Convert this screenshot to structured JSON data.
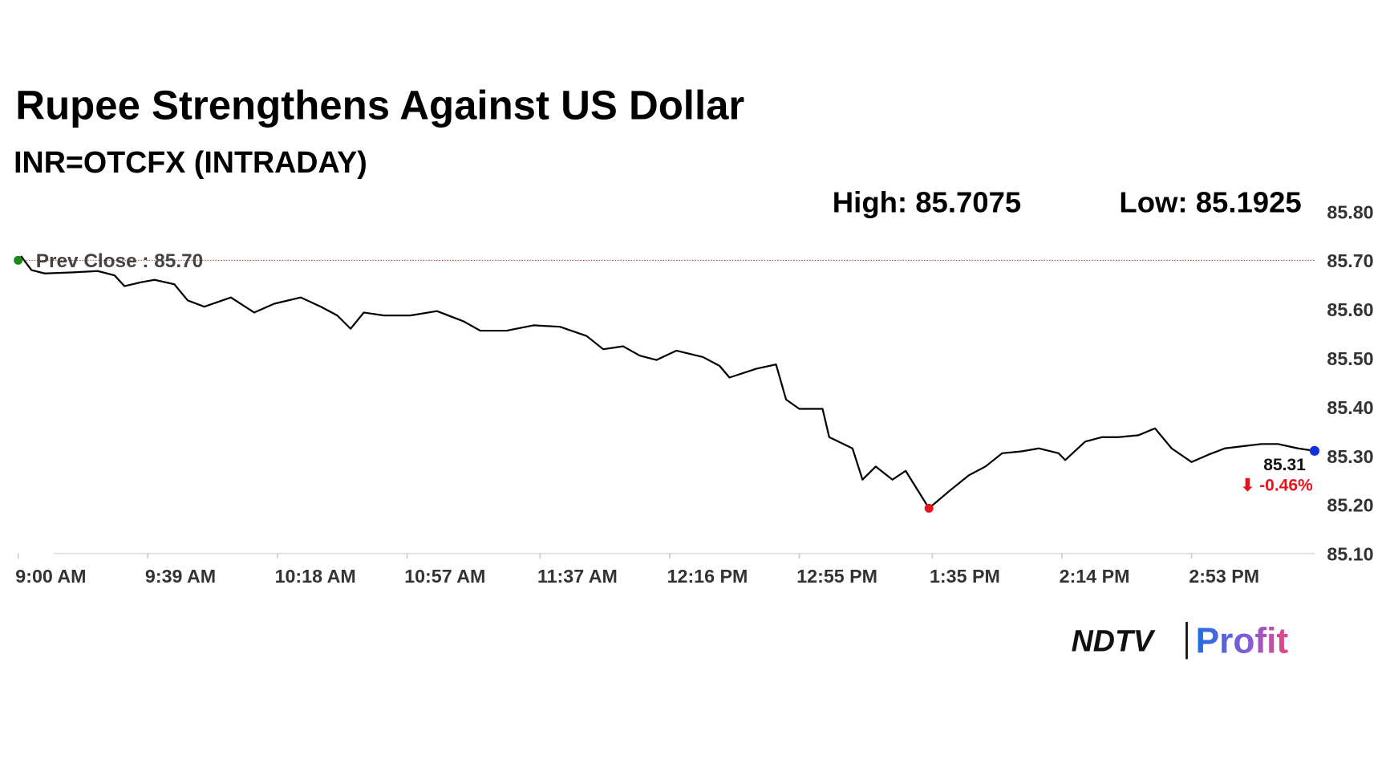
{
  "chart_data": {
    "type": "line",
    "title": "Rupee Strengthens Against US Dollar",
    "subtitle": "INR=OTCFX (INTRADAY)",
    "high_label": "High: 85.7075",
    "low_label": "Low: 85.1925",
    "prev_close": {
      "value": 85.7,
      "label": "Prev Close : 85.70"
    },
    "last_label": "85.31",
    "change_label": "⬇ -0.46%",
    "x": [
      "9:00 AM",
      "9:01 AM",
      "9:04 AM",
      "9:08 AM",
      "9:16 AM",
      "9:24 AM",
      "9:29 AM",
      "9:32 AM",
      "9:37 AM",
      "9:41 AM",
      "9:47 AM",
      "9:51 AM",
      "9:56 AM",
      "10:04 AM",
      "10:11 AM",
      "10:17 AM",
      "10:25 AM",
      "10:31 AM",
      "10:36 AM",
      "10:40 AM",
      "10:44 AM",
      "10:50 AM",
      "10:58 AM",
      "11:06 AM",
      "11:14 AM",
      "11:19 AM",
      "11:27 AM",
      "11:35 AM",
      "11:43 AM",
      "11:51 AM",
      "11:56 AM",
      "12:02 PM",
      "12:07 PM",
      "12:12 PM",
      "12:18 PM",
      "12:26 PM",
      "12:31 PM",
      "12:34 PM",
      "12:42 PM",
      "12:48 PM",
      "12:51 PM",
      "12:55 PM",
      "1:02 PM",
      "1:04 PM",
      "1:11 PM",
      "1:14 PM",
      "1:18 PM",
      "1:23 PM",
      "1:27 PM",
      "1:34 PM",
      "1:40 PM",
      "1:46 PM",
      "1:51 PM",
      "1:56 PM",
      "2:02 PM",
      "2:07 PM",
      "2:13 PM",
      "2:15 PM",
      "2:21 PM",
      "2:26 PM",
      "2:31 PM",
      "2:37 PM",
      "2:42 PM",
      "2:47 PM",
      "2:53 PM",
      "2:58 PM",
      "3:03 PM",
      "3:09 PM",
      "3:14 PM",
      "3:19 PM",
      "3:25 PM",
      "3:30 PM"
    ],
    "series": [
      {
        "name": "INR=OTCFX",
        "color": "#000000",
        "values": [
          85.7,
          85.7075,
          85.68,
          85.673,
          85.675,
          85.678,
          85.669,
          85.647,
          85.655,
          85.66,
          85.651,
          85.618,
          85.605,
          85.624,
          85.593,
          85.611,
          85.624,
          85.605,
          85.587,
          85.56,
          85.593,
          85.587,
          85.587,
          85.596,
          85.575,
          85.556,
          85.556,
          85.567,
          85.564,
          85.545,
          85.518,
          85.524,
          85.505,
          85.496,
          85.515,
          85.502,
          85.484,
          85.46,
          85.478,
          85.487,
          85.415,
          85.396,
          85.396,
          85.338,
          85.315,
          85.251,
          85.278,
          85.251,
          85.269,
          85.1925,
          85.227,
          85.26,
          85.278,
          85.305,
          85.309,
          85.315,
          85.305,
          85.291,
          85.329,
          85.338,
          85.338,
          85.342,
          85.356,
          85.315,
          85.287,
          85.302,
          85.315,
          85.32,
          85.324,
          85.324,
          85.315,
          85.31
        ]
      }
    ],
    "ylim": [
      85.1,
      85.8
    ],
    "yticks": [
      {
        "value": 85.8,
        "label": "85.80"
      },
      {
        "value": 85.7,
        "label": "85.70"
      },
      {
        "value": 85.6,
        "label": "85.60"
      },
      {
        "value": 85.5,
        "label": "85.50"
      },
      {
        "value": 85.4,
        "label": "85.40"
      },
      {
        "value": 85.3,
        "label": "85.30"
      },
      {
        "value": 85.2,
        "label": "85.20"
      },
      {
        "value": 85.1,
        "label": "85.10"
      }
    ],
    "xticks": [
      "9:00 AM",
      "9:39 AM",
      "10:18 AM",
      "10:57 AM",
      "11:37 AM",
      "12:16 PM",
      "12:55 PM",
      "1:35 PM",
      "2:14 PM",
      "2:53 PM"
    ],
    "grid": false
  },
  "logo": {
    "brand": "NDTV",
    "product": "Profit"
  }
}
